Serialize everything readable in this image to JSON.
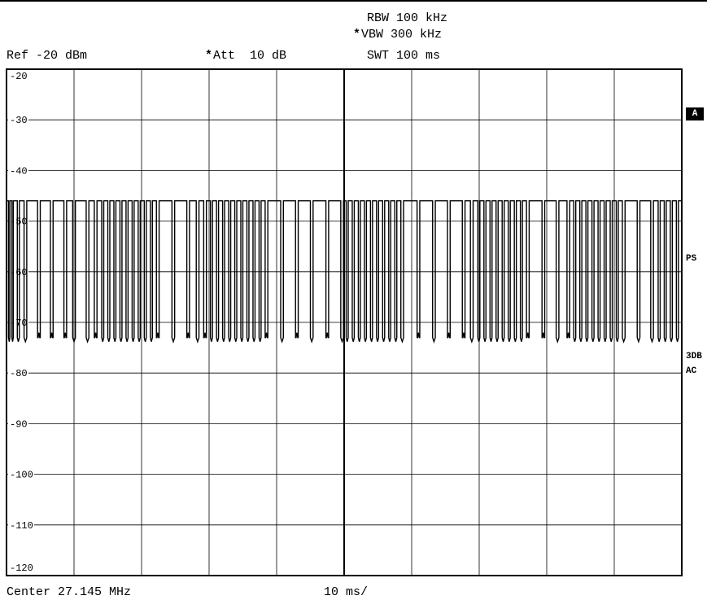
{
  "header": {
    "rbw": "RBW 100 kHz",
    "vbw_star": "*",
    "vbw": "VBW 300 kHz",
    "swt": "SWT 100 ms",
    "ref": "Ref -20 dBm",
    "att_star": "*",
    "att": "Att  10 dB"
  },
  "footer": {
    "center": "Center 27.145 MHz",
    "span_per_div": "10 ms/"
  },
  "side": {
    "trace_a": "A",
    "ps": "PS",
    "detector_1": "3DB",
    "detector_2": "AC"
  },
  "colors": {
    "trace": "#000000",
    "grid": "#000000",
    "background": "#ffffff"
  },
  "chart_data": {
    "type": "line",
    "title": "",
    "xlabel": "",
    "ylabel": "",
    "x_unit": "ms",
    "y_unit": "dBm",
    "xlim": [
      0,
      100
    ],
    "ylim": [
      -120,
      -20
    ],
    "grid": true,
    "y_ticks": [
      -20,
      -30,
      -40,
      -50,
      -60,
      -70,
      -80,
      -90,
      -100,
      -110,
      -120
    ],
    "high_level": -46,
    "low_level": -73,
    "series": [
      {
        "pulses": [
          [
            0.0,
            0.3
          ],
          [
            0.5,
            0.8
          ],
          [
            1.0,
            1.6
          ],
          [
            1.9,
            2.6
          ],
          [
            3.0,
            4.6
          ],
          [
            5.0,
            6.5
          ],
          [
            6.9,
            8.5
          ],
          [
            8.9,
            9.8
          ],
          [
            10.2,
            11.8
          ],
          [
            12.2,
            13.0
          ],
          [
            13.4,
            14.1
          ],
          [
            14.4,
            15.0
          ],
          [
            15.3,
            15.9
          ],
          [
            16.2,
            16.8
          ],
          [
            17.1,
            17.7
          ],
          [
            18.0,
            18.6
          ],
          [
            18.9,
            19.5
          ],
          [
            19.8,
            20.4
          ],
          [
            20.7,
            21.3
          ],
          [
            21.6,
            22.2
          ],
          [
            22.6,
            24.5
          ],
          [
            24.9,
            26.7
          ],
          [
            27.1,
            28.1
          ],
          [
            28.5,
            29.2
          ],
          [
            29.6,
            30.2
          ],
          [
            30.5,
            31.1
          ],
          [
            31.4,
            32.0
          ],
          [
            32.3,
            32.9
          ],
          [
            33.2,
            33.8
          ],
          [
            34.1,
            34.7
          ],
          [
            35.0,
            35.6
          ],
          [
            35.9,
            36.5
          ],
          [
            36.8,
            37.4
          ],
          [
            37.7,
            38.3
          ],
          [
            38.7,
            40.6
          ],
          [
            41.0,
            42.8
          ],
          [
            43.2,
            45.0
          ],
          [
            45.4,
            47.3
          ],
          [
            47.7,
            49.5
          ],
          [
            49.9,
            50.3
          ],
          [
            50.6,
            51.2
          ],
          [
            51.5,
            52.1
          ],
          [
            52.4,
            53.0
          ],
          [
            53.3,
            53.9
          ],
          [
            54.2,
            54.8
          ],
          [
            55.1,
            55.7
          ],
          [
            56.0,
            56.6
          ],
          [
            56.9,
            57.5
          ],
          [
            57.8,
            58.4
          ],
          [
            58.8,
            60.8
          ],
          [
            61.2,
            63.1
          ],
          [
            63.5,
            65.3
          ],
          [
            65.7,
            67.5
          ],
          [
            67.9,
            68.7
          ],
          [
            69.1,
            69.8
          ],
          [
            70.1,
            70.7
          ],
          [
            71.0,
            71.6
          ],
          [
            71.9,
            72.5
          ],
          [
            72.8,
            73.4
          ],
          [
            73.7,
            74.3
          ],
          [
            74.6,
            75.2
          ],
          [
            75.5,
            76.1
          ],
          [
            76.4,
            77.0
          ],
          [
            77.4,
            79.3
          ],
          [
            79.7,
            81.4
          ],
          [
            81.8,
            83.0
          ],
          [
            83.4,
            84.0
          ],
          [
            84.3,
            84.9
          ],
          [
            85.2,
            85.8
          ],
          [
            86.1,
            86.7
          ],
          [
            87.0,
            87.6
          ],
          [
            87.9,
            88.5
          ],
          [
            88.8,
            89.4
          ],
          [
            89.7,
            90.3
          ],
          [
            90.6,
            91.2
          ],
          [
            91.6,
            93.4
          ],
          [
            93.8,
            95.4
          ],
          [
            95.8,
            96.5
          ],
          [
            96.8,
            97.4
          ],
          [
            97.7,
            98.3
          ],
          [
            98.6,
            99.2
          ],
          [
            99.5,
            100.0
          ]
        ]
      }
    ]
  }
}
